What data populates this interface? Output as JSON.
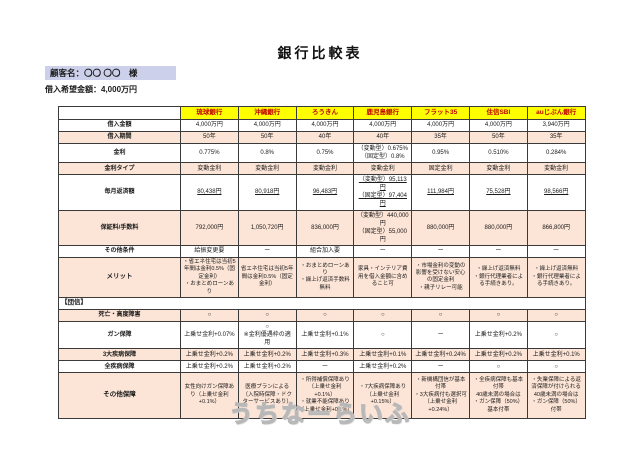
{
  "title": "銀行比較表",
  "customer": {
    "name_line": "顧客名：〇〇 〇〇　様",
    "amount_line": "借入希望金額：4,000万円"
  },
  "colors": {
    "header_bg": "#ffff00",
    "header_text": "#c00000",
    "stripe_peach": "#fce4d6",
    "customer_highlight": "#cdd0ea"
  },
  "table": {
    "banks": [
      "琉球銀行",
      "沖縄銀行",
      "ろうきん",
      "鹿児島銀行",
      "フラット35",
      "住信SBI",
      "auじぶん銀行"
    ],
    "rows": [
      {
        "id": "amount",
        "label": "借入金額",
        "values": [
          "4,000万円",
          "4,000万円",
          "4,000万円",
          "4,000万円",
          "4,000万円",
          "4,000万円",
          "3,940万円"
        ]
      },
      {
        "id": "term",
        "label": "借入期間",
        "values": [
          "50年",
          "50年",
          "40年",
          "40年",
          "35年",
          "50年",
          "35年"
        ]
      },
      {
        "id": "rate",
        "label": "金利",
        "values": [
          "0.775%",
          "0.8%",
          "0.75%",
          "（変動型）0.675%\n（固定型）0.8%",
          "0.95%",
          "0.510%",
          "0.284%"
        ]
      },
      {
        "id": "rate_type",
        "label": "金利タイプ",
        "values": [
          "変動金利",
          "変動金利",
          "変動金利",
          "変動金利",
          "固定金利",
          "変動金利",
          "変動金利"
        ]
      },
      {
        "id": "monthly_payment",
        "label": "毎月返済額",
        "values": [
          "80,438円",
          "80,918円",
          "96,483円",
          "（変動型）95,113円\n（固定型）97,404円",
          "111,984円",
          "75,528円",
          "98,566円"
        ]
      },
      {
        "id": "fees",
        "label": "保証料/手数料",
        "values": [
          "792,000円",
          "1,050,720円",
          "836,000円",
          "（変動型）440,000円\n（固定型）55,000円",
          "880,000円",
          "880,000円",
          "866,800円"
        ]
      },
      {
        "id": "other_cond",
        "label": "その他条件",
        "values": [
          "給振変更要",
          "ー",
          "組合加入要",
          "ー",
          "ー",
          "ー",
          "ー"
        ]
      },
      {
        "id": "merit",
        "label": "メリット",
        "values": [
          "・省エネ住宅は当初5年間は金利0.5%（固定金利）\n・おまとめローンあり",
          "省エネ住宅は当初5年間は金利0.5%（固定金利）",
          "・おまとめローンあり\n・繰上げ返済手数料無料",
          "家具・インテリア費用を借入金額に含めること可",
          "・市場金利の変動の影響を受けない安心の固定金利\n・親子リレー可能",
          "・繰上げ返済無料\n・銀行代理業者による手続きあり。",
          "・繰上げ返済無料\n・銀行代理業者による手続きあり。"
        ]
      },
      {
        "id": "section",
        "label": "【団信】",
        "section": true
      },
      {
        "id": "death",
        "label": "死亡・高度障害",
        "values": [
          "○",
          "○",
          "○",
          "○",
          "○",
          "○",
          "○"
        ]
      },
      {
        "id": "cancer",
        "label": "ガン保障",
        "values": [
          "上乗せ金利+0.07%",
          "○\n※金利優遇枠の適用",
          "上乗せ金利+0.1%",
          "○",
          "ー",
          "上乗せ金利+0.2%",
          "○"
        ]
      },
      {
        "id": "three_disease",
        "label": "3大疾病保障",
        "values": [
          "上乗せ金利+0.2%",
          "上乗せ金利+0.2%",
          "上乗せ金利+0.3%",
          "上乗せ金利+0.1%",
          "上乗せ金利+0.24%",
          "上乗せ金利+0.2%",
          "上乗せ金利+0.1%"
        ]
      },
      {
        "id": "all_disease",
        "label": "全疾病保障",
        "values": [
          "上乗せ金利+0.2%",
          "上乗せ金利+0.2%",
          "ー",
          "上乗せ金利+0.2%",
          "ー",
          "○",
          "○"
        ]
      },
      {
        "id": "other_coverage",
        "label": "その他保障",
        "values": [
          "女性向けガン保障あり（上乗せ金利+0.1%）",
          "医療プランによる（入院時保障・ドクターサービスあり）",
          "・所得補償保障あり（上乗せ金利+0.1%）\n・就業不能保障あり（上乗せ金利+0.1%）",
          "・7大疾病保障あり（上乗せ金利+0.15%）",
          "・新機構団信が基本付帯\n・3大疾病付も選択可（上乗せ金利+0.24%）",
          "・全疾病保障も基本付帯\n40歳未満の場合は\n・ガン保障（50%）基本付帯",
          "・失業保障による返済保障が付けられる\n40歳未満の場合は\n・ガン保障（50%）付帯"
        ]
      }
    ]
  },
  "footer": {
    "logo_text": "うちなーらいふ"
  }
}
